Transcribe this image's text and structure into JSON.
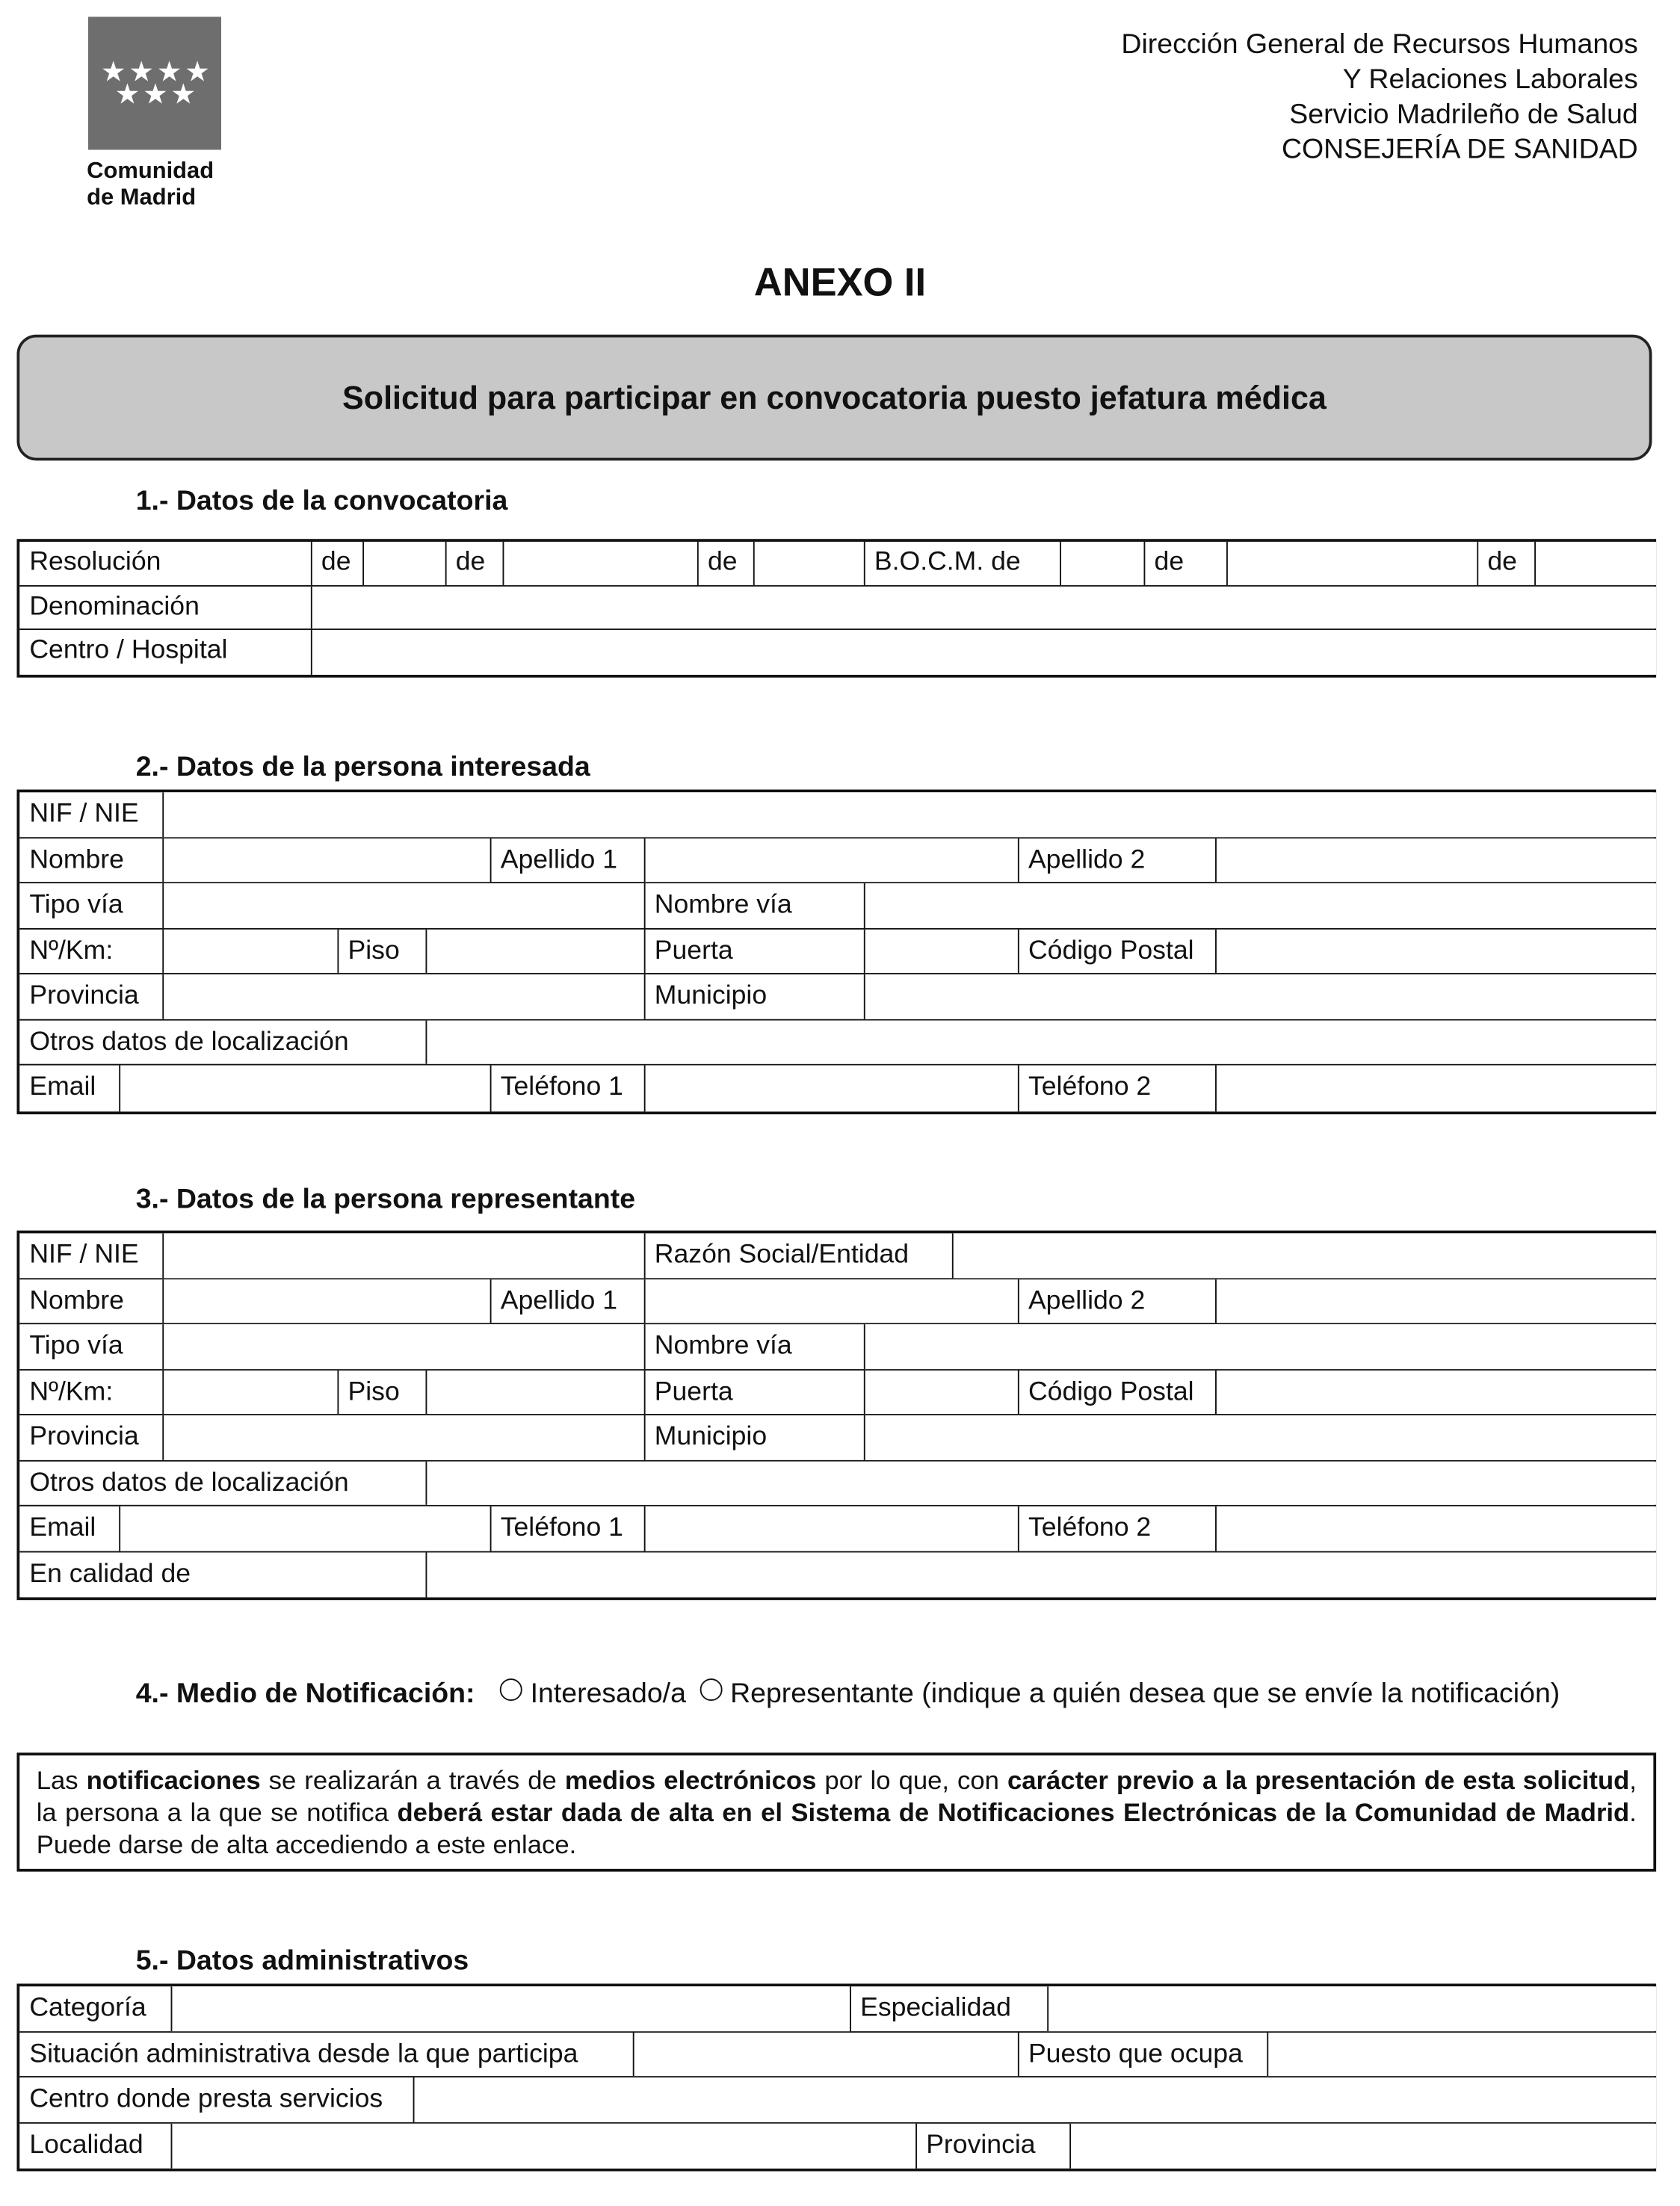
{
  "logo": {
    "text_line1": "Comunidad",
    "text_line2": "de Madrid",
    "stars": 7,
    "box_color": "#6e6e6e"
  },
  "agency": [
    "Dirección General de Recursos Humanos",
    "Y Relaciones Laborales",
    "Servicio Madrileño de Salud",
    "CONSEJERÍA DE SANIDAD"
  ],
  "annex_title": "ANEXO II",
  "form_title": "Solicitud para participar en convocatoria puesto jefatura médica",
  "title_box_color": "#c8c8c8",
  "section1": {
    "heading": "1.- Datos de la convocatoria",
    "rows": [
      [
        "Resolución",
        "de",
        "",
        "de",
        "",
        "de",
        "",
        "B.O.C.M. de",
        "",
        "de",
        "",
        "de",
        ""
      ],
      [
        "Denominación",
        ""
      ],
      [
        "Centro / Hospital",
        ""
      ]
    ]
  },
  "section2": {
    "heading": "2.- Datos de la persona interesada",
    "rows": [
      [
        "NIF / NIE",
        ""
      ],
      [
        "Nombre",
        "",
        "Apellido 1",
        "",
        "Apellido 2",
        ""
      ],
      [
        "Tipo vía",
        "",
        "Nombre vía",
        ""
      ],
      [
        "Nº/Km:",
        "",
        "Piso",
        "",
        "Puerta",
        "",
        "Código Postal",
        ""
      ],
      [
        "Provincia",
        "",
        "Municipio",
        ""
      ],
      [
        "Otros datos de localización",
        ""
      ],
      [
        "Email",
        "",
        "Teléfono 1",
        "",
        "Teléfono 2",
        ""
      ]
    ]
  },
  "section3": {
    "heading": "3.- Datos de la persona representante",
    "rows": [
      [
        "NIF / NIE",
        "",
        "Razón Social/Entidad",
        ""
      ],
      [
        "Nombre",
        "",
        "Apellido 1",
        "",
        "Apellido 2",
        ""
      ],
      [
        "Tipo vía",
        "",
        "Nombre vía",
        ""
      ],
      [
        "Nº/Km:",
        "",
        "Piso",
        "",
        "Puerta",
        "",
        "Código Postal",
        ""
      ],
      [
        "Provincia",
        "",
        "Municipio",
        ""
      ],
      [
        "Otros datos de localización",
        ""
      ],
      [
        "Email",
        "",
        "Teléfono 1",
        "",
        "Teléfono 2",
        ""
      ],
      [
        "En calidad de",
        ""
      ]
    ]
  },
  "section4": {
    "heading": "4.- Medio de Notificación:",
    "option1": "Interesado/a",
    "option2": "Representante",
    "option1_selected": false,
    "option2_selected": false,
    "note": "(indique a quién desea que se envíe la notificación)",
    "notice_parts": [
      {
        "t": "Las ",
        "b": false
      },
      {
        "t": "notificaciones",
        "b": true
      },
      {
        "t": " se realizarán a través de ",
        "b": false
      },
      {
        "t": "medios electrónicos",
        "b": true
      },
      {
        "t": " por lo que, con ",
        "b": false
      },
      {
        "t": "carácter previo a la presentación de esta solicitud",
        "b": true
      },
      {
        "t": ", la persona a la que se notifica ",
        "b": false
      },
      {
        "t": "deberá estar dada de alta en el Sistema de Notificaciones Electrónicas de la Comunidad de Madrid",
        "b": true
      },
      {
        "t": ". Puede darse de alta accediendo a este enlace.",
        "b": false
      }
    ]
  },
  "section5": {
    "heading": "5.- Datos administrativos",
    "rows": [
      [
        "Categoría",
        "",
        "Especialidad",
        ""
      ],
      [
        "Situación administrativa desde la que participa",
        "",
        "Puesto que ocupa",
        ""
      ],
      [
        "Centro donde presta servicios",
        ""
      ],
      [
        "Localidad",
        "",
        "Provincia",
        ""
      ]
    ]
  }
}
